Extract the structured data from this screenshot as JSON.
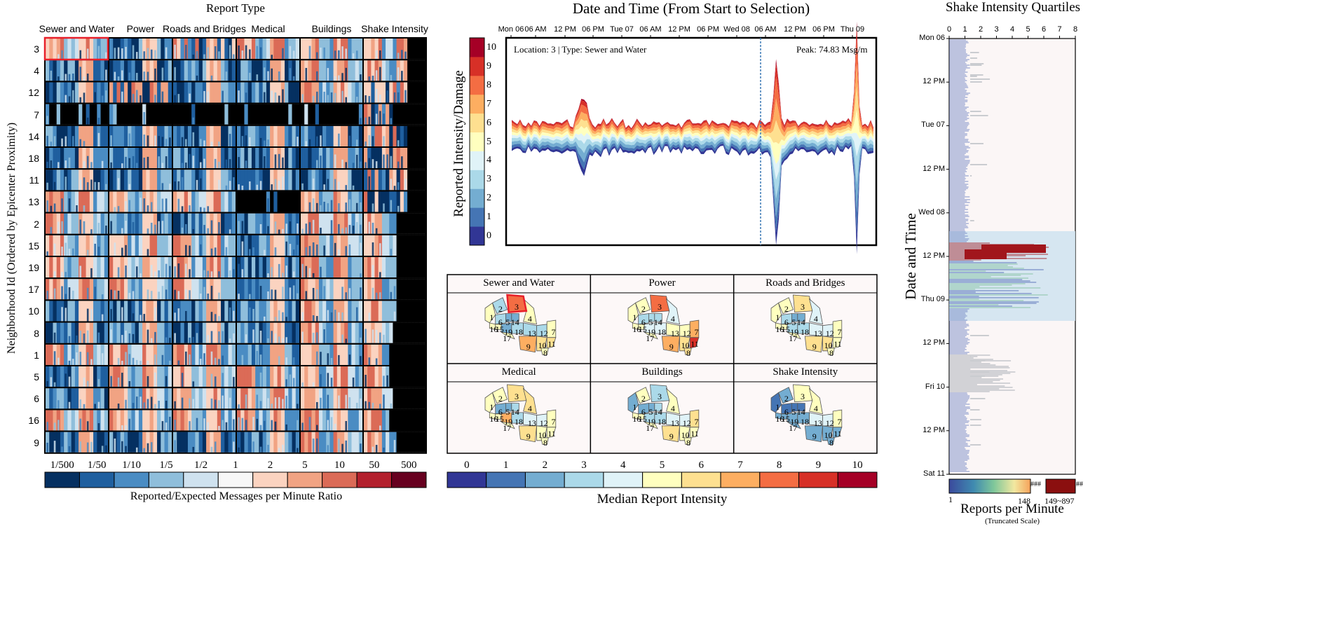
{
  "panels": {
    "heatmap": {
      "title": "Report Type",
      "ylabel": "Neighborhood Id (Ordered by Epicenter Proximity)",
      "columns": [
        "Sewer and Water",
        "Power",
        "Roads and Bridges",
        "Medical",
        "Buildings",
        "Shake Intensity"
      ],
      "rows": [
        "3",
        "4",
        "12",
        "7",
        "14",
        "18",
        "11",
        "13",
        "2",
        "15",
        "19",
        "17",
        "10",
        "8",
        "1",
        "5",
        "6",
        "16",
        "9"
      ],
      "selected_row": "3",
      "selected_column": "Sewer and Water"
    },
    "ratio_legend": {
      "ticks": [
        "1/500",
        "1/50",
        "1/10",
        "1/5",
        "1/2",
        "1",
        "2",
        "5",
        "10",
        "50",
        "500"
      ],
      "colors": [
        "#053061",
        "#1f5f9f",
        "#4a8cc3",
        "#8fbedb",
        "#cfe2ef",
        "#f7f7f7",
        "#fbd3c0",
        "#f1a383",
        "#db6b57",
        "#b3202d",
        "#67001f"
      ],
      "label": "Reported/Expected Messages per Minute Ratio"
    },
    "timeseries": {
      "title": "Date and Time (From Start to Selection)",
      "ylabel": "Reported Intensity/Damage",
      "info": "Location: 3 | Type: Sewer and Water",
      "peak": "Peak: 74.83 Msg/m",
      "x_ticks": [
        "Mon 06",
        "06 AM",
        "12 PM",
        "06 PM",
        "Tue 07",
        "06 AM",
        "12 PM",
        "06 PM",
        "Wed 08",
        "06 AM",
        "12 PM",
        "06 PM",
        "Thu 09"
      ],
      "intensity_levels": [
        "0",
        "1",
        "2",
        "3",
        "4",
        "5",
        "6",
        "7",
        "8",
        "9",
        "10"
      ],
      "band_colors": [
        "#313695",
        "#4575b4",
        "#74add1",
        "#abd9e9",
        "#e0f3f8",
        "#ffffbf",
        "#fee090",
        "#fdae61",
        "#f46d43",
        "#d73027",
        "#a50026"
      ],
      "selection_marker": "Wed 08 06 AM"
    },
    "maps": {
      "titles": [
        "Sewer and Water",
        "Power",
        "Roads and Bridges",
        "Medical",
        "Buildings",
        "Shake Intensity"
      ],
      "region_labels": [
        "1",
        "2",
        "3",
        "4",
        "6",
        "5",
        "14",
        "19",
        "18",
        "13",
        "12",
        "7",
        "9",
        "10",
        "11",
        "8",
        "15",
        "16",
        "17"
      ],
      "median_ticks": [
        "0",
        "1",
        "2",
        "3",
        "4",
        "5",
        "6",
        "7",
        "8",
        "9",
        "10"
      ],
      "median_label": "Median Report Intensity",
      "median_colors": [
        "#313695",
        "#4575b4",
        "#74add1",
        "#abd9e9",
        "#e0f3f8",
        "#ffffbf",
        "#fee090",
        "#fdae61",
        "#f46d43",
        "#d73027",
        "#a50026"
      ]
    },
    "quartiles": {
      "title": "Shake Intensity Quartiles",
      "ylabel": "Date and Time",
      "x_ticks": [
        "0",
        "1",
        "2",
        "3",
        "4",
        "5",
        "6",
        "7",
        "8"
      ],
      "y_ticks": [
        "Mon 06",
        "12 PM",
        "Tue 07",
        "12 PM",
        "Wed 08",
        "12 PM",
        "Thu 09",
        "12 PM",
        "Fri 10",
        "12 PM",
        "Sat 11"
      ],
      "legend_min": "1",
      "legend_max": "148",
      "legend_overflow": "149~897",
      "legend_hash": "###",
      "legend_hash2": "##",
      "legend_title": "Reports per Minute",
      "legend_subtitle": "(Truncated Scale)"
    }
  },
  "chart_data": [
    {
      "type": "heatmap",
      "title": "Report Type",
      "xlabel": "Report Type",
      "ylabel": "Neighborhood Id (Ordered by Epicenter Proximity)",
      "categories": [
        "Sewer and Water",
        "Power",
        "Roads and Bridges",
        "Medical",
        "Buildings",
        "Shake Intensity"
      ],
      "rows": [
        "3",
        "4",
        "12",
        "7",
        "14",
        "18",
        "11",
        "13",
        "2",
        "15",
        "19",
        "17",
        "10",
        "8",
        "1",
        "5",
        "6",
        "16",
        "9"
      ],
      "scale": "log ratio 1/500 to 500",
      "notes": "each cell is a small time-strip of ratio colours"
    },
    {
      "type": "area",
      "title": "Date and Time (From Start to Selection)",
      "ylabel": "Reported Intensity/Damage",
      "series": [
        {
          "name": "Location: 3 | Type: Sewer and Water",
          "peak": 74.83
        }
      ],
      "x_range": [
        "Mon 06",
        "Thu 09"
      ]
    },
    {
      "type": "scatter",
      "title": "Shake Intensity Quartiles",
      "ylabel": "Date and Time",
      "xlim": [
        0,
        8
      ],
      "ylim": [
        "Mon 06",
        "Sat 11"
      ],
      "color_range": [
        1,
        148
      ],
      "overflow_range": "149~897"
    }
  ]
}
